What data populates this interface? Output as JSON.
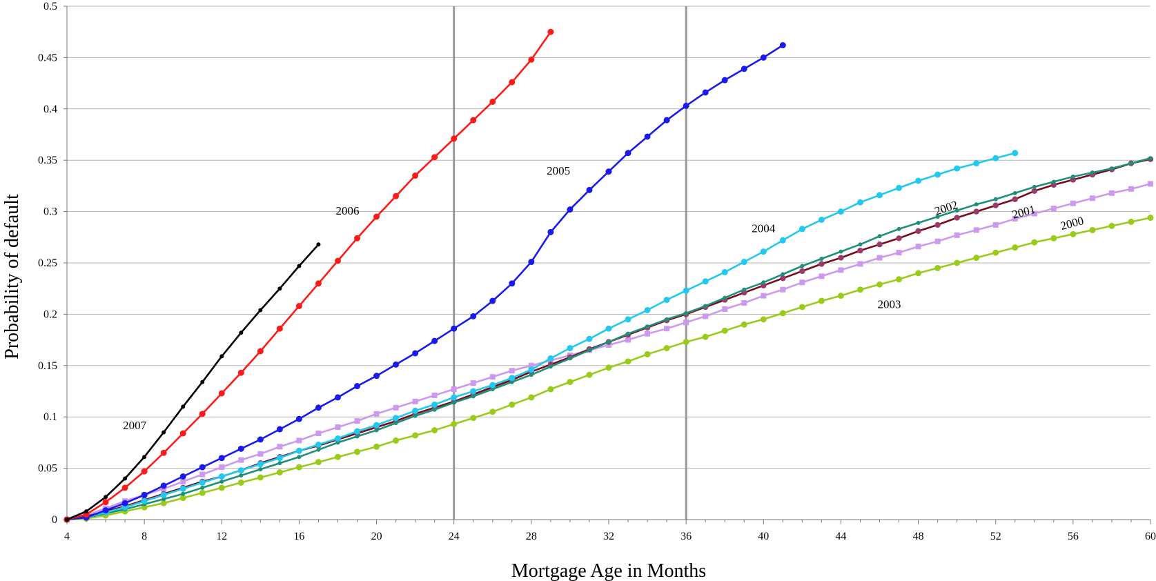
{
  "chart_data": {
    "type": "line",
    "title": "",
    "xlabel": "Mortgage Age in Months",
    "ylabel": "Probability of default",
    "xlim": [
      4,
      60
    ],
    "ylim": [
      0,
      0.5
    ],
    "x_ticks": [
      4,
      8,
      12,
      16,
      20,
      24,
      28,
      32,
      36,
      40,
      44,
      48,
      52,
      56,
      60
    ],
    "y_ticks": [
      0,
      0.05,
      0.1,
      0.15,
      0.2,
      0.25,
      0.3,
      0.35,
      0.4,
      0.45,
      0.5
    ],
    "x_tick_labels": [
      "4",
      "8",
      "12",
      "16",
      "20",
      "24",
      "28",
      "32",
      "36",
      "40",
      "44",
      "48",
      "52",
      "56",
      "60"
    ],
    "y_tick_labels": [
      "0",
      "0.05",
      "0.1",
      "0.15",
      "0.2",
      "0.25",
      "0.3",
      "0.35",
      "0.4",
      "0.45",
      "0.5"
    ],
    "grid": "horizontal",
    "vertical_reference_lines": [
      24,
      36
    ],
    "reference_line_color": "#999999",
    "series": [
      {
        "name": "2007",
        "color": "#000000",
        "marker": "dot-small",
        "label": {
          "text": "2007",
          "x": 7.5,
          "y": 0.088,
          "rotate": 0
        },
        "x": [
          4,
          5,
          6,
          7,
          8,
          9,
          10,
          11,
          12,
          13,
          14,
          15,
          16,
          17
        ],
        "values": [
          0,
          0.008,
          0.022,
          0.04,
          0.061,
          0.085,
          0.11,
          0.134,
          0.159,
          0.182,
          0.204,
          0.225,
          0.247,
          0.268
        ]
      },
      {
        "name": "2006",
        "color": "#ff1a1a",
        "marker": "dot",
        "label": {
          "text": "2006",
          "x": 18.5,
          "y": 0.297,
          "rotate": 0
        },
        "x": [
          4,
          5,
          6,
          7,
          8,
          9,
          10,
          11,
          12,
          13,
          14,
          15,
          16,
          17,
          18,
          19,
          20,
          21,
          22,
          23,
          24,
          25,
          26,
          27,
          28,
          29
        ],
        "values": [
          0,
          0.005,
          0.017,
          0.031,
          0.047,
          0.065,
          0.084,
          0.103,
          0.123,
          0.143,
          0.164,
          0.186,
          0.208,
          0.23,
          0.252,
          0.274,
          0.295,
          0.315,
          0.335,
          0.353,
          0.371,
          0.389,
          0.407,
          0.426,
          0.448,
          0.475
        ]
      },
      {
        "name": "2005",
        "color": "#1a1aee",
        "marker": "dot",
        "label": {
          "text": "2005",
          "x": 29.4,
          "y": 0.336,
          "rotate": 0
        },
        "x": [
          4,
          5,
          6,
          7,
          8,
          9,
          10,
          11,
          12,
          13,
          14,
          15,
          16,
          17,
          18,
          19,
          20,
          21,
          22,
          23,
          24,
          25,
          26,
          27,
          28,
          29,
          30,
          31,
          32,
          33,
          34,
          35,
          36,
          37,
          38,
          39,
          40,
          41
        ],
        "values": [
          0,
          0.002,
          0.009,
          0.016,
          0.024,
          0.033,
          0.042,
          0.051,
          0.06,
          0.069,
          0.078,
          0.088,
          0.098,
          0.109,
          0.119,
          0.13,
          0.14,
          0.151,
          0.162,
          0.174,
          0.186,
          0.198,
          0.213,
          0.23,
          0.251,
          0.28,
          0.302,
          0.321,
          0.339,
          0.357,
          0.373,
          0.389,
          0.403,
          0.416,
          0.428,
          0.439,
          0.45,
          0.462
        ]
      },
      {
        "name": "2004",
        "color": "#22c8ee",
        "marker": "dot",
        "label": {
          "text": "2004",
          "x": 40,
          "y": 0.28,
          "rotate": 0
        },
        "x": [
          4,
          5,
          6,
          7,
          8,
          9,
          10,
          11,
          12,
          13,
          14,
          15,
          16,
          17,
          18,
          19,
          20,
          21,
          22,
          23,
          24,
          25,
          26,
          27,
          28,
          29,
          30,
          31,
          32,
          33,
          34,
          35,
          36,
          37,
          38,
          39,
          40,
          41,
          42,
          43,
          44,
          45,
          46,
          47,
          48,
          49,
          50,
          51,
          52,
          53
        ],
        "values": [
          0,
          0.002,
          0.007,
          0.012,
          0.018,
          0.024,
          0.03,
          0.036,
          0.042,
          0.048,
          0.054,
          0.06,
          0.067,
          0.073,
          0.079,
          0.086,
          0.092,
          0.099,
          0.106,
          0.112,
          0.119,
          0.125,
          0.131,
          0.138,
          0.146,
          0.157,
          0.167,
          0.176,
          0.186,
          0.195,
          0.204,
          0.214,
          0.223,
          0.232,
          0.241,
          0.251,
          0.261,
          0.272,
          0.283,
          0.292,
          0.3,
          0.309,
          0.316,
          0.323,
          0.33,
          0.336,
          0.342,
          0.347,
          0.352,
          0.357
        ]
      },
      {
        "name": "2003",
        "color": "#99cc1a",
        "marker": "dot",
        "label": {
          "text": "2003",
          "x": 46.5,
          "y": 0.206,
          "rotate": 0
        },
        "x": [
          4,
          5,
          6,
          7,
          8,
          9,
          10,
          11,
          12,
          13,
          14,
          15,
          16,
          17,
          18,
          19,
          20,
          21,
          22,
          23,
          24,
          25,
          26,
          27,
          28,
          29,
          30,
          31,
          32,
          33,
          34,
          35,
          36,
          37,
          38,
          39,
          40,
          41,
          42,
          43,
          44,
          45,
          46,
          47,
          48,
          49,
          50,
          51,
          52,
          53,
          54,
          55,
          56,
          57,
          58,
          59,
          60
        ],
        "values": [
          0,
          0.001,
          0.004,
          0.008,
          0.012,
          0.016,
          0.021,
          0.026,
          0.031,
          0.036,
          0.041,
          0.046,
          0.051,
          0.056,
          0.061,
          0.066,
          0.071,
          0.077,
          0.082,
          0.087,
          0.093,
          0.099,
          0.105,
          0.112,
          0.119,
          0.127,
          0.134,
          0.141,
          0.148,
          0.154,
          0.161,
          0.167,
          0.173,
          0.178,
          0.184,
          0.19,
          0.195,
          0.201,
          0.207,
          0.213,
          0.218,
          0.224,
          0.229,
          0.234,
          0.24,
          0.245,
          0.25,
          0.255,
          0.26,
          0.265,
          0.27,
          0.274,
          0.278,
          0.282,
          0.286,
          0.29,
          0.294
        ]
      },
      {
        "name": "2002",
        "color": "#1f8f7a",
        "marker": "dot-small",
        "label": {
          "text": "2002",
          "x": 49.5,
          "y": 0.3,
          "rotate": -18
        },
        "x": [
          4,
          5,
          6,
          7,
          8,
          9,
          10,
          11,
          12,
          13,
          14,
          15,
          16,
          17,
          18,
          19,
          20,
          21,
          22,
          23,
          24,
          25,
          26,
          27,
          28,
          29,
          30,
          31,
          32,
          33,
          34,
          35,
          36,
          37,
          38,
          39,
          40,
          41,
          42,
          43,
          44,
          45,
          46,
          47,
          48,
          49,
          50,
          51,
          52,
          53,
          54,
          55,
          56,
          57,
          58,
          59,
          60
        ],
        "values": [
          0,
          0.002,
          0.006,
          0.01,
          0.015,
          0.02,
          0.025,
          0.031,
          0.037,
          0.043,
          0.049,
          0.055,
          0.061,
          0.068,
          0.075,
          0.081,
          0.087,
          0.094,
          0.101,
          0.107,
          0.114,
          0.12,
          0.127,
          0.134,
          0.141,
          0.149,
          0.157,
          0.165,
          0.173,
          0.181,
          0.188,
          0.195,
          0.201,
          0.208,
          0.216,
          0.224,
          0.231,
          0.239,
          0.247,
          0.254,
          0.261,
          0.268,
          0.276,
          0.283,
          0.289,
          0.295,
          0.301,
          0.307,
          0.312,
          0.318,
          0.324,
          0.329,
          0.334,
          0.338,
          0.342,
          0.347,
          0.352
        ]
      },
      {
        "name": "2001",
        "color": "#7a0a1a",
        "marker": "dot-mauve",
        "label": {
          "text": "2001",
          "x": 53.5,
          "y": 0.296,
          "rotate": -15
        },
        "x": [
          4,
          5,
          6,
          7,
          8,
          9,
          10,
          11,
          12,
          13,
          14,
          15,
          16,
          17,
          18,
          19,
          20,
          21,
          22,
          23,
          24,
          25,
          26,
          27,
          28,
          29,
          30,
          31,
          32,
          33,
          34,
          35,
          36,
          37,
          38,
          39,
          40,
          41,
          42,
          43,
          44,
          45,
          46,
          47,
          48,
          49,
          50,
          51,
          52,
          53,
          54,
          55,
          56,
          57,
          58,
          59,
          60
        ],
        "values": [
          0,
          0.003,
          0.008,
          0.013,
          0.019,
          0.025,
          0.031,
          0.037,
          0.042,
          0.048,
          0.055,
          0.061,
          0.067,
          0.072,
          0.078,
          0.084,
          0.09,
          0.096,
          0.103,
          0.109,
          0.115,
          0.122,
          0.129,
          0.136,
          0.144,
          0.151,
          0.158,
          0.166,
          0.173,
          0.18,
          0.187,
          0.194,
          0.2,
          0.207,
          0.214,
          0.221,
          0.228,
          0.235,
          0.242,
          0.249,
          0.255,
          0.262,
          0.268,
          0.274,
          0.281,
          0.287,
          0.294,
          0.3,
          0.306,
          0.312,
          0.32,
          0.326,
          0.331,
          0.336,
          0.341,
          0.347,
          0.351
        ]
      },
      {
        "name": "2000",
        "color": "#cc99ee",
        "marker": "square",
        "label": {
          "text": "2000",
          "x": 56,
          "y": 0.285,
          "rotate": -15
        },
        "x": [
          4,
          5,
          6,
          7,
          8,
          9,
          10,
          11,
          12,
          13,
          14,
          15,
          16,
          17,
          18,
          19,
          20,
          21,
          22,
          23,
          24,
          25,
          26,
          27,
          28,
          29,
          30,
          31,
          32,
          33,
          34,
          35,
          36,
          37,
          38,
          39,
          40,
          41,
          42,
          43,
          44,
          45,
          46,
          47,
          48,
          49,
          50,
          51,
          52,
          53,
          54,
          55,
          56,
          57,
          58,
          59,
          60
        ],
        "values": [
          0,
          0.004,
          0.011,
          0.018,
          0.024,
          0.03,
          0.037,
          0.044,
          0.051,
          0.058,
          0.064,
          0.071,
          0.077,
          0.084,
          0.09,
          0.096,
          0.103,
          0.109,
          0.115,
          0.121,
          0.127,
          0.133,
          0.139,
          0.145,
          0.15,
          0.155,
          0.16,
          0.165,
          0.17,
          0.175,
          0.181,
          0.186,
          0.192,
          0.198,
          0.205,
          0.211,
          0.218,
          0.224,
          0.231,
          0.237,
          0.243,
          0.249,
          0.255,
          0.26,
          0.266,
          0.271,
          0.277,
          0.282,
          0.287,
          0.293,
          0.298,
          0.303,
          0.308,
          0.313,
          0.318,
          0.322,
          0.327
        ]
      }
    ]
  }
}
